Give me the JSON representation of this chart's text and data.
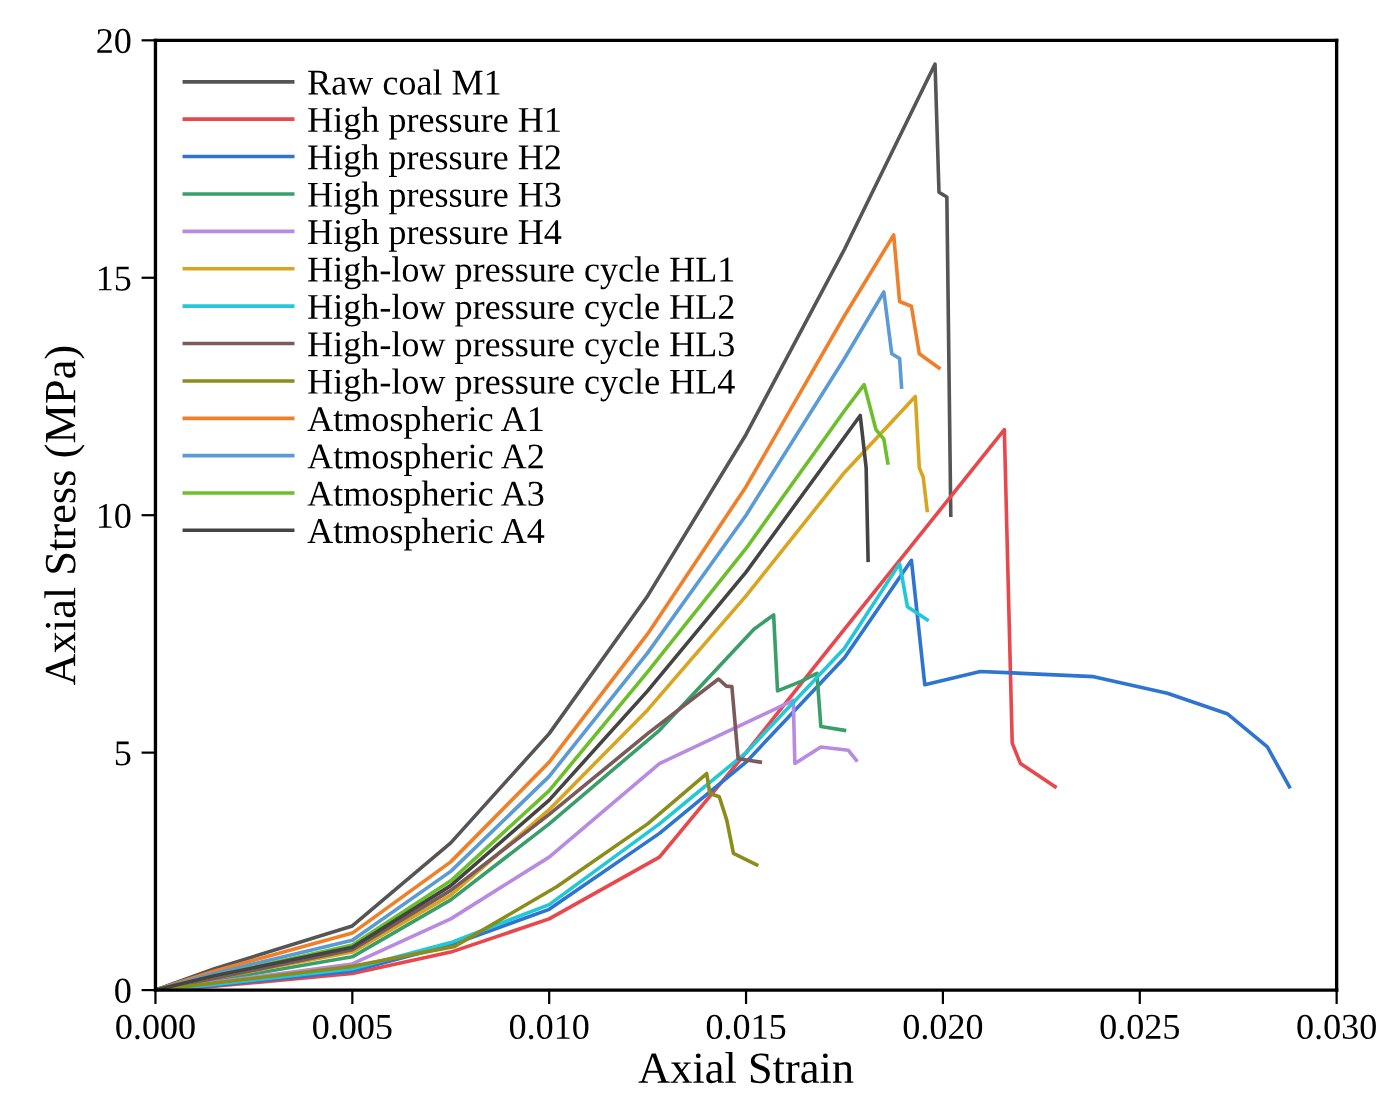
{
  "chart_data": {
    "type": "line",
    "xlabel": "Axial Strain",
    "ylabel": "Axial Stress (MPa)",
    "xlim": [
      0,
      0.03
    ],
    "ylim": [
      0,
      20
    ],
    "xticks": [
      {
        "value": 0,
        "label": "0.000"
      },
      {
        "value": 0.005,
        "label": "0.005"
      },
      {
        "value": 0.01,
        "label": "0.010"
      },
      {
        "value": 0.015,
        "label": "0.015"
      },
      {
        "value": 0.02,
        "label": "0.020"
      },
      {
        "value": 0.025,
        "label": "0.025"
      },
      {
        "value": 0.03,
        "label": "0.030"
      }
    ],
    "yticks": [
      0,
      5,
      10,
      15,
      20
    ],
    "grid": false,
    "legend": "top left",
    "marker": "none",
    "line_style": "solid",
    "series": [
      {
        "name": "Raw coal M1",
        "color": "#555555",
        "x": [
          0,
          0.0015,
          0.005,
          0.0075,
          0.01,
          0.0125,
          0.015,
          0.0175,
          0.0198,
          0.0199,
          0.0201,
          0.0202
        ],
        "values": [
          0,
          0.45,
          1.35,
          3.1,
          5.4,
          8.3,
          11.7,
          15.6,
          19.5,
          16.8,
          16.7,
          10.0
        ]
      },
      {
        "name": "High pressure H1",
        "color": "#e8474b",
        "x": [
          0,
          0.0015,
          0.005,
          0.0075,
          0.01,
          0.0128,
          0.015,
          0.0175,
          0.02156,
          0.02176,
          0.02197,
          0.02285
        ],
        "values": [
          0,
          0.08,
          0.35,
          0.8,
          1.5,
          2.8,
          5.0,
          7.6,
          11.8,
          5.2,
          4.77,
          4.28
        ]
      },
      {
        "name": "High pressure H2",
        "color": "#2e74d0",
        "x": [
          0,
          0.0015,
          0.005,
          0.0075,
          0.01,
          0.0128,
          0.015,
          0.0175,
          0.0192,
          0.01954,
          0.02095,
          0.02383,
          0.0257,
          0.02722,
          0.02824,
          0.0288
        ],
        "values": [
          0,
          0.1,
          0.4,
          0.95,
          1.7,
          3.3,
          4.8,
          7.0,
          9.05,
          6.43,
          6.71,
          6.6,
          6.25,
          5.82,
          5.12,
          4.28
        ]
      },
      {
        "name": "High pressure H3",
        "color": "#3a9e6a",
        "x": [
          0,
          0.0015,
          0.005,
          0.0075,
          0.01,
          0.0128,
          0.0152,
          0.0157,
          0.0158,
          0.0164,
          0.0168,
          0.0169,
          0.0175
        ],
        "values": [
          0,
          0.2,
          0.7,
          1.9,
          3.5,
          5.47,
          7.6,
          7.9,
          6.3,
          6.5,
          6.67,
          5.55,
          5.47
        ]
      },
      {
        "name": "High pressure H4",
        "color": "#b88ae0",
        "x": [
          0,
          0.005,
          0.0075,
          0.01,
          0.0128,
          0.0162,
          0.01624,
          0.0169,
          0.0176,
          0.0178
        ],
        "values": [
          0,
          0.55,
          1.5,
          2.8,
          4.77,
          6.1,
          4.77,
          5.12,
          5.05,
          4.84
        ]
      },
      {
        "name": "High-low pressure cycle HL1",
        "color": "#d9a520",
        "x": [
          0,
          0.0015,
          0.005,
          0.0075,
          0.01,
          0.0125,
          0.015,
          0.0175,
          0.0193,
          0.0194,
          0.0195,
          0.0196
        ],
        "values": [
          0,
          0.25,
          0.8,
          2.0,
          3.8,
          5.9,
          8.3,
          10.9,
          12.5,
          11.0,
          10.8,
          10.1
        ]
      },
      {
        "name": "High-low pressure cycle HL2",
        "color": "#22c8d8",
        "x": [
          0,
          0.0015,
          0.005,
          0.0075,
          0.01,
          0.0128,
          0.015,
          0.0175,
          0.0189,
          0.0191,
          0.0196
        ],
        "values": [
          0,
          0.12,
          0.45,
          1.0,
          1.8,
          3.5,
          5.0,
          7.2,
          8.98,
          8.07,
          7.8
        ]
      },
      {
        "name": "High-low pressure cycle HL3",
        "color": "#7a5a5a",
        "x": [
          0,
          0.0015,
          0.005,
          0.0075,
          0.01,
          0.0125,
          0.0143,
          0.0145,
          0.01464,
          0.0148,
          0.01536
        ],
        "values": [
          0,
          0.25,
          0.85,
          2.1,
          3.7,
          5.4,
          6.55,
          6.4,
          6.39,
          4.87,
          4.8
        ]
      },
      {
        "name": "High-low pressure cycle HL4",
        "color": "#8c8c1a",
        "x": [
          0,
          0.0015,
          0.005,
          0.0076,
          0.0102,
          0.0125,
          0.014,
          0.01408,
          0.01432,
          0.01451,
          0.01468,
          0.01527
        ],
        "values": [
          0,
          0.15,
          0.5,
          0.92,
          2.18,
          3.5,
          4.56,
          4.14,
          4.07,
          3.58,
          2.88,
          2.64
        ]
      },
      {
        "name": "Atmospheric A1",
        "color": "#f07f2a",
        "x": [
          0,
          0.0015,
          0.005,
          0.0075,
          0.01,
          0.0125,
          0.015,
          0.0175,
          0.01875,
          0.0189,
          0.0192,
          0.0194,
          0.0199
        ],
        "values": [
          0,
          0.4,
          1.2,
          2.7,
          4.8,
          7.5,
          10.6,
          14.2,
          15.9,
          14.5,
          14.4,
          13.4,
          13.1
        ]
      },
      {
        "name": "Atmospheric A2",
        "color": "#5b9bd5",
        "x": [
          0,
          0.0015,
          0.005,
          0.0075,
          0.01,
          0.0125,
          0.015,
          0.0175,
          0.0185,
          0.0187,
          0.0189,
          0.01895
        ],
        "values": [
          0,
          0.35,
          1.05,
          2.5,
          4.5,
          7.1,
          10.0,
          13.3,
          14.7,
          13.4,
          13.3,
          12.7
        ]
      },
      {
        "name": "Atmospheric A3",
        "color": "#6cbf2a",
        "x": [
          0,
          0.0015,
          0.005,
          0.0075,
          0.01,
          0.0125,
          0.015,
          0.0175,
          0.018,
          0.0183,
          0.0185,
          0.0186
        ],
        "values": [
          0,
          0.3,
          0.95,
          2.3,
          4.2,
          6.7,
          9.3,
          12.2,
          12.75,
          11.8,
          11.6,
          11.1
        ]
      },
      {
        "name": "Atmospheric A4",
        "color": "#444444",
        "x": [
          0,
          0.0015,
          0.005,
          0.0075,
          0.01,
          0.0125,
          0.015,
          0.0179,
          0.01805,
          0.0181
        ],
        "values": [
          0,
          0.3,
          0.9,
          2.2,
          4.0,
          6.3,
          8.8,
          12.1,
          11.0,
          9.05
        ]
      }
    ]
  }
}
